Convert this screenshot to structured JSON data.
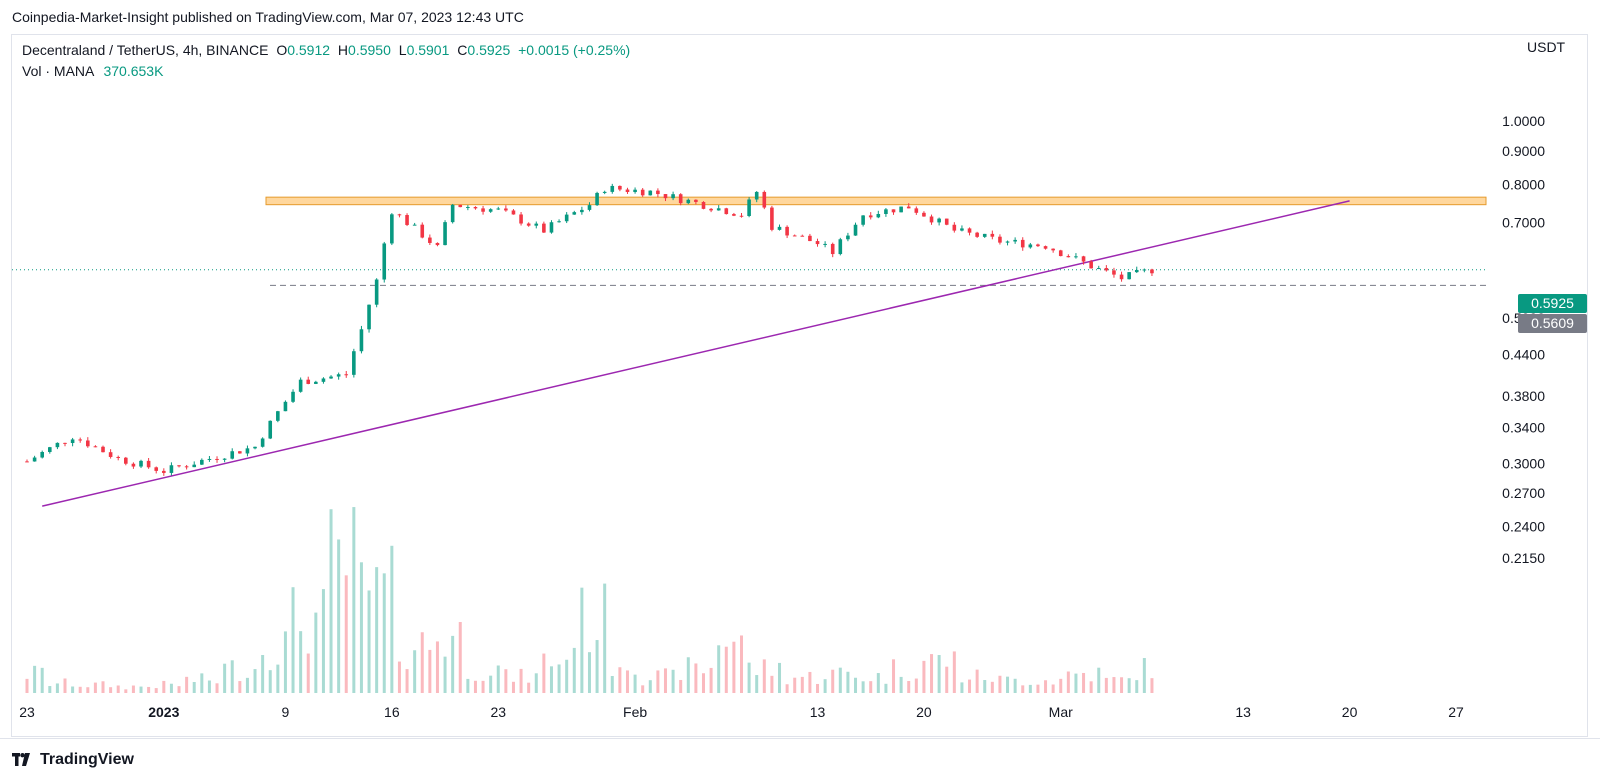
{
  "header": {
    "publisher_line": "Coinpedia-Market-Insight published on TradingView.com, Mar 07, 2023 12:43 UTC"
  },
  "legend": {
    "symbol": "Decentraland / TetherUS, 4h, BINANCE",
    "o_label": "O",
    "o_value": "0.5912",
    "h_label": "H",
    "h_value": "0.5950",
    "l_label": "L",
    "l_value": "0.5901",
    "c_label": "C",
    "c_value": "0.5925",
    "change": "+0.0015 (+0.25%)",
    "vol_label": "Vol · MANA",
    "vol_value": "370.653K"
  },
  "price_axis": {
    "unit": "USDT",
    "ticks": [
      "1.0000",
      "0.9000",
      "0.8000",
      "0.7000",
      "0.5000",
      "0.4400",
      "0.3800",
      "0.3400",
      "0.3000",
      "0.2700",
      "0.2400",
      "0.2150"
    ],
    "last_price": "0.5925",
    "last_price_color": "#089981",
    "support_price": "0.5609",
    "support_color": "#787b86"
  },
  "time_axis": {
    "labels": [
      "23",
      "2023",
      "9",
      "16",
      "23",
      "Feb",
      "13",
      "20",
      "Mar",
      "13",
      "20",
      "27"
    ]
  },
  "footer": {
    "brand": "TradingView"
  },
  "colors": {
    "up": "#089981",
    "down": "#f23645",
    "trendline": "#9c27b0",
    "resistance": "#ffb74d"
  },
  "chart_data": {
    "type": "candlestick",
    "title": "Decentraland / TetherUS, 4h, BINANCE",
    "y_axis": "log",
    "ylim": [
      0.2,
      1.2
    ],
    "yticks": [
      1.0,
      0.9,
      0.8,
      0.7,
      0.5,
      0.44,
      0.38,
      0.34,
      0.3,
      0.27,
      0.24,
      0.215
    ],
    "x_ticks": [
      "23",
      "2023",
      "9",
      "16",
      "23",
      "Feb",
      "13",
      "20",
      "Mar",
      "13",
      "20",
      "27"
    ],
    "series": [
      {
        "x": [
          "Dec 23",
          "Dec 26",
          "Dec 29",
          "Jan 1",
          "Jan 4",
          "Jan 7",
          "Jan 10",
          "Jan 13",
          "Jan 14",
          "Jan 15",
          "Jan 16",
          "Jan 19",
          "Jan 20",
          "Jan 23",
          "Jan 26",
          "Jan 29",
          "Jan 30",
          "Feb 2",
          "Feb 5",
          "Feb 8",
          "Feb 9",
          "Feb 10",
          "Feb 13",
          "Feb 14",
          "Feb 16",
          "Feb 19",
          "Feb 20",
          "Feb 22",
          "Feb 25",
          "Feb 28",
          "Mar 3",
          "Mar 5",
          "Mar 7"
        ],
        "close": [
          0.302,
          0.33,
          0.305,
          0.292,
          0.305,
          0.318,
          0.4,
          0.41,
          0.48,
          0.57,
          0.73,
          0.64,
          0.745,
          0.73,
          0.68,
          0.745,
          0.79,
          0.78,
          0.75,
          0.72,
          0.78,
          0.69,
          0.65,
          0.63,
          0.72,
          0.74,
          0.72,
          0.68,
          0.655,
          0.645,
          0.6,
          0.575,
          0.5925
        ]
      }
    ],
    "volume_series": {
      "name": "Vol · MANA",
      "last": "370.653K",
      "relative_levels": [
        0.12,
        0.06,
        0.05,
        0.04,
        0.05,
        0.08,
        0.15,
        0.3,
        0.45,
        0.8,
        0.6,
        0.3,
        0.35,
        0.15,
        0.1,
        0.2,
        0.45,
        0.2,
        0.1,
        0.15,
        0.35,
        0.15,
        0.1,
        0.12,
        0.1,
        0.15,
        0.2,
        0.1,
        0.08,
        0.08,
        0.12,
        0.08,
        0.15
      ]
    },
    "trendline": {
      "from": [
        "Dec 24",
        0.258
      ],
      "to": [
        "Mar 20",
        0.755
      ]
    },
    "resistance_zone": [
      0.745,
      0.765
    ],
    "support_line": 0.5609,
    "last_price": 0.5925
  }
}
